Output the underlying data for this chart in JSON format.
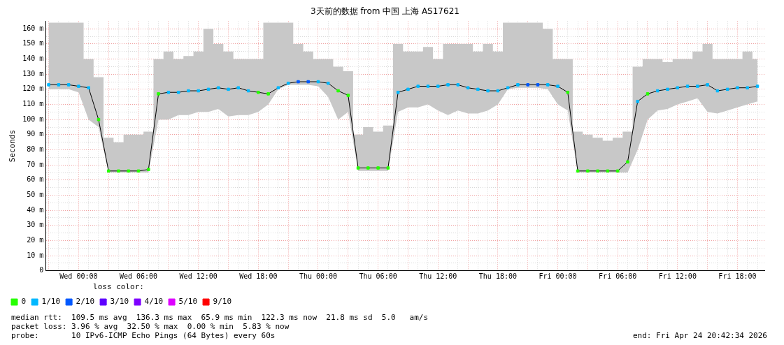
{
  "chart_data": {
    "type": "line",
    "title": "3天前的数据 from 中国 上海 AS17621",
    "ylabel": "Seconds",
    "legend_title": "loss color:",
    "legend": "bottom",
    "grid": true,
    "marker": "square",
    "annotations": [
      "median rtt:  109.5 ms avg  136.3 ms max  65.9 ms min  122.3 ms now  21.8 ms sd  5.0   am/s",
      "packet loss: 3.96 % avg  32.50 % max  0.00 % min  5.83 % now",
      "probe:       10 IPv6-ICMP Echo Pings (64 Bytes) every 60s",
      "end: Fri Apr 24 20:42:34 2026"
    ],
    "xlim": [
      "2026-04-21T20:42",
      "2026-04-24T20:42"
    ],
    "ylim": [
      0,
      165
    ],
    "yticks": [
      0,
      {
        "value": 5,
        "label": null
      },
      {
        "value": 10,
        "label": "10 m"
      },
      {
        "value": 15,
        "label": null
      },
      {
        "value": 20,
        "label": "20 m"
      },
      {
        "value": 25,
        "label": null
      },
      {
        "value": 30,
        "label": "30 m"
      },
      {
        "value": 35,
        "label": null
      },
      {
        "value": 40,
        "label": "40 m"
      },
      {
        "value": 45,
        "label": null
      },
      {
        "value": 50,
        "label": "50 m"
      },
      {
        "value": 55,
        "label": null
      },
      {
        "value": 60,
        "label": "60 m"
      },
      {
        "value": 65,
        "label": null
      },
      {
        "value": 70,
        "label": "70 m"
      },
      {
        "value": 75,
        "label": null
      },
      {
        "value": 80,
        "label": "80 m"
      },
      {
        "value": 85,
        "label": null
      },
      {
        "value": 90,
        "label": "90 m"
      },
      {
        "value": 95,
        "label": null
      },
      {
        "value": 100,
        "label": "100 m"
      },
      {
        "value": 105,
        "label": null
      },
      {
        "value": 110,
        "label": "110 m"
      },
      {
        "value": 115,
        "label": null
      },
      {
        "value": 120,
        "label": "120 m"
      },
      {
        "value": 125,
        "label": null
      },
      {
        "value": 130,
        "label": "130 m"
      },
      {
        "value": 135,
        "label": null
      },
      {
        "value": 140,
        "label": "140 m"
      },
      {
        "value": 145,
        "label": null
      },
      {
        "value": 150,
        "label": "150 m"
      },
      {
        "value": 155,
        "label": null
      },
      {
        "value": 160,
        "label": "160 m"
      }
    ],
    "xticks": [
      {
        "value": "2026-04-21T21:00",
        "label": null
      },
      {
        "value": "2026-04-21T22:00",
        "label": null
      },
      {
        "value": "2026-04-21T23:00",
        "label": null
      },
      {
        "value": "2026-04-22T00:00",
        "label": "Wed 00:00"
      },
      {
        "value": "2026-04-22T01:00",
        "label": null
      },
      {
        "value": "2026-04-22T02:00",
        "label": null
      },
      {
        "value": "2026-04-22T03:00",
        "label": null
      },
      {
        "value": "2026-04-22T04:00",
        "label": null
      },
      {
        "value": "2026-04-22T05:00",
        "label": null
      },
      {
        "value": "2026-04-22T06:00",
        "label": "Wed 06:00"
      },
      {
        "value": "2026-04-22T07:00",
        "label": null
      },
      {
        "value": "2026-04-22T08:00",
        "label": null
      },
      {
        "value": "2026-04-22T09:00",
        "label": null
      },
      {
        "value": "2026-04-22T10:00",
        "label": null
      },
      {
        "value": "2026-04-22T11:00",
        "label": null
      },
      {
        "value": "2026-04-22T12:00",
        "label": "Wed 12:00"
      },
      {
        "value": "2026-04-22T13:00",
        "label": null
      },
      {
        "value": "2026-04-22T14:00",
        "label": null
      },
      {
        "value": "2026-04-22T15:00",
        "label": null
      },
      {
        "value": "2026-04-22T16:00",
        "label": null
      },
      {
        "value": "2026-04-22T17:00",
        "label": null
      },
      {
        "value": "2026-04-22T18:00",
        "label": "Wed 18:00"
      },
      {
        "value": "2026-04-22T19:00",
        "label": null
      },
      {
        "value": "2026-04-22T20:00",
        "label": null
      },
      {
        "value": "2026-04-22T21:00",
        "label": null
      },
      {
        "value": "2026-04-22T22:00",
        "label": null
      },
      {
        "value": "2026-04-22T23:00",
        "label": null
      },
      {
        "value": "2026-04-23T00:00",
        "label": "Thu 00:00"
      },
      {
        "value": "2026-04-23T01:00",
        "label": null
      },
      {
        "value": "2026-04-23T02:00",
        "label": null
      },
      {
        "value": "2026-04-23T03:00",
        "label": null
      },
      {
        "value": "2026-04-23T04:00",
        "label": null
      },
      {
        "value": "2026-04-23T05:00",
        "label": null
      },
      {
        "value": "2026-04-23T06:00",
        "label": "Thu 06:00"
      },
      {
        "value": "2026-04-23T07:00",
        "label": null
      },
      {
        "value": "2026-04-23T08:00",
        "label": null
      },
      {
        "value": "2026-04-23T09:00",
        "label": null
      },
      {
        "value": "2026-04-23T10:00",
        "label": null
      },
      {
        "value": "2026-04-23T11:00",
        "label": null
      },
      {
        "value": "2026-04-23T12:00",
        "label": "Thu 12:00"
      },
      {
        "value": "2026-04-23T13:00",
        "label": null
      },
      {
        "value": "2026-04-23T14:00",
        "label": null
      },
      {
        "value": "2026-04-23T15:00",
        "label": null
      },
      {
        "value": "2026-04-23T16:00",
        "label": null
      },
      {
        "value": "2026-04-23T17:00",
        "label": null
      },
      {
        "value": "2026-04-23T18:00",
        "label": "Thu 18:00"
      },
      {
        "value": "2026-04-23T19:00",
        "label": null
      },
      {
        "value": "2026-04-23T20:00",
        "label": null
      },
      {
        "value": "2026-04-23T21:00",
        "label": null
      },
      {
        "value": "2026-04-23T22:00",
        "label": null
      },
      {
        "value": "2026-04-23T23:00",
        "label": null
      },
      {
        "value": "2026-04-24T00:00",
        "label": "Fri 00:00"
      },
      {
        "value": "2026-04-24T01:00",
        "label": null
      },
      {
        "value": "2026-04-24T02:00",
        "label": null
      },
      {
        "value": "2026-04-24T03:00",
        "label": null
      },
      {
        "value": "2026-04-24T04:00",
        "label": null
      },
      {
        "value": "2026-04-24T05:00",
        "label": null
      },
      {
        "value": "2026-04-24T06:00",
        "label": "Fri 06:00"
      },
      {
        "value": "2026-04-24T07:00",
        "label": null
      },
      {
        "value": "2026-04-24T08:00",
        "label": null
      },
      {
        "value": "2026-04-24T09:00",
        "label": null
      },
      {
        "value": "2026-04-24T10:00",
        "label": null
      },
      {
        "value": "2026-04-24T11:00",
        "label": null
      },
      {
        "value": "2026-04-24T12:00",
        "label": "Fri 12:00"
      },
      {
        "value": "2026-04-24T13:00",
        "label": null
      },
      {
        "value": "2026-04-24T14:00",
        "label": null
      },
      {
        "value": "2026-04-24T15:00",
        "label": null
      },
      {
        "value": "2026-04-24T16:00",
        "label": null
      },
      {
        "value": "2026-04-24T17:00",
        "label": null
      },
      {
        "value": "2026-04-24T18:00",
        "label": "Fri 18:00"
      },
      {
        "value": "2026-04-24T19:00",
        "label": null
      },
      {
        "value": "2026-04-24T20:00",
        "label": null
      }
    ],
    "x": [
      "2026-04-21T21:00",
      "2026-04-21T22:00",
      "2026-04-21T23:00",
      "2026-04-22T00:00",
      "2026-04-22T01:00",
      "2026-04-22T02:00",
      "2026-04-22T03:00",
      "2026-04-22T04:00",
      "2026-04-22T05:00",
      "2026-04-22T06:00",
      "2026-04-22T07:00",
      "2026-04-22T08:00",
      "2026-04-22T09:00",
      "2026-04-22T10:00",
      "2026-04-22T11:00",
      "2026-04-22T12:00",
      "2026-04-22T13:00",
      "2026-04-22T14:00",
      "2026-04-22T15:00",
      "2026-04-22T16:00",
      "2026-04-22T17:00",
      "2026-04-22T18:00",
      "2026-04-22T19:00",
      "2026-04-22T20:00",
      "2026-04-22T21:00",
      "2026-04-22T22:00",
      "2026-04-22T23:00",
      "2026-04-23T00:00",
      "2026-04-23T01:00",
      "2026-04-23T02:00",
      "2026-04-23T03:00",
      "2026-04-23T04:00",
      "2026-04-23T05:00",
      "2026-04-23T06:00",
      "2026-04-23T07:00",
      "2026-04-23T08:00",
      "2026-04-23T09:00",
      "2026-04-23T10:00",
      "2026-04-23T11:00",
      "2026-04-23T12:00",
      "2026-04-23T13:00",
      "2026-04-23T14:00",
      "2026-04-23T15:00",
      "2026-04-23T16:00",
      "2026-04-23T17:00",
      "2026-04-23T18:00",
      "2026-04-23T19:00",
      "2026-04-23T20:00",
      "2026-04-23T21:00",
      "2026-04-23T22:00",
      "2026-04-23T23:00",
      "2026-04-24T00:00",
      "2026-04-24T01:00",
      "2026-04-24T02:00",
      "2026-04-24T03:00",
      "2026-04-24T04:00",
      "2026-04-24T05:00",
      "2026-04-24T06:00",
      "2026-04-24T07:00",
      "2026-04-24T08:00",
      "2026-04-24T09:00",
      "2026-04-24T10:00",
      "2026-04-24T11:00",
      "2026-04-24T12:00",
      "2026-04-24T13:00",
      "2026-04-24T14:00",
      "2026-04-24T15:00",
      "2026-04-24T16:00",
      "2026-04-24T17:00",
      "2026-04-24T18:00",
      "2026-04-24T19:00",
      "2026-04-24T20:00"
    ],
    "series": [
      {
        "color": "#000000",
        "marker": "none",
        "values": [
          123,
          123,
          123,
          122,
          121,
          100,
          66,
          66,
          66,
          66,
          67,
          117,
          118,
          118,
          119,
          119,
          120,
          121,
          120,
          121,
          119,
          118,
          117,
          121,
          124,
          125,
          125,
          125,
          124,
          119,
          116,
          68,
          68,
          68,
          68,
          118,
          120,
          122,
          122,
          122,
          123,
          123,
          121,
          120,
          119,
          119,
          121,
          123,
          123,
          123,
          123,
          122,
          118,
          66,
          66,
          66,
          66,
          66,
          72,
          112,
          117,
          119,
          120,
          121,
          122,
          122,
          123,
          119,
          120,
          121,
          121,
          122
        ],
        "upper": [
          164,
          164,
          164,
          164,
          140,
          128,
          88,
          85,
          90,
          90,
          92,
          140,
          145,
          140,
          142,
          145,
          160,
          150,
          145,
          140,
          140,
          140,
          164,
          164,
          164,
          150,
          145,
          140,
          140,
          135,
          132,
          90,
          95,
          92,
          96,
          150,
          145,
          145,
          148,
          140,
          150,
          150,
          150,
          145,
          150,
          145,
          164,
          164,
          164,
          164,
          160,
          140,
          140,
          92,
          90,
          88,
          86,
          88,
          92,
          135,
          140,
          140,
          138,
          140,
          140,
          145,
          150,
          140,
          140,
          140,
          145,
          140
        ],
        "lower": [
          120,
          120,
          120,
          118,
          100,
          95,
          65,
          65,
          65,
          65,
          65,
          100,
          100,
          103,
          103,
          105,
          105,
          107,
          102,
          103,
          103,
          105,
          110,
          120,
          123,
          123,
          123,
          122,
          115,
          100,
          105,
          66,
          66,
          66,
          66,
          105,
          108,
          108,
          110,
          106,
          103,
          106,
          104,
          104,
          106,
          110,
          120,
          121,
          121,
          121,
          120,
          110,
          106,
          65,
          65,
          65,
          65,
          65,
          65,
          80,
          100,
          106,
          107,
          110,
          112,
          114,
          105,
          104,
          106,
          108,
          110,
          112
        ]
      },
      {
        "type": "scatter",
        "name": "0",
        "color": "#26ff00",
        "values": [
          null,
          null,
          null,
          null,
          null,
          100,
          66,
          66,
          66,
          66,
          67,
          117,
          null,
          null,
          null,
          null,
          null,
          null,
          null,
          null,
          null,
          118,
          117,
          null,
          null,
          null,
          null,
          null,
          null,
          119,
          116,
          68,
          68,
          68,
          68,
          null,
          null,
          null,
          null,
          null,
          null,
          null,
          null,
          null,
          null,
          null,
          null,
          null,
          null,
          null,
          null,
          null,
          118,
          66,
          66,
          66,
          66,
          66,
          72,
          null,
          117,
          null,
          null,
          null,
          null,
          null,
          null,
          null,
          null,
          null,
          null,
          null
        ]
      },
      {
        "type": "scatter",
        "name": "1/10",
        "color": "#00b8ff",
        "values": [
          123,
          123,
          123,
          122,
          121,
          null,
          null,
          null,
          null,
          null,
          null,
          null,
          118,
          118,
          119,
          119,
          120,
          121,
          120,
          121,
          119,
          null,
          null,
          121,
          124,
          null,
          null,
          125,
          124,
          null,
          null,
          null,
          null,
          null,
          null,
          118,
          120,
          122,
          122,
          122,
          123,
          123,
          121,
          120,
          119,
          119,
          121,
          123,
          null,
          null,
          123,
          122,
          null,
          null,
          null,
          null,
          null,
          null,
          null,
          112,
          null,
          119,
          120,
          121,
          122,
          122,
          123,
          119,
          120,
          121,
          121,
          122
        ]
      },
      {
        "type": "scatter",
        "name": "2/10",
        "color": "#0059ff",
        "values": [
          null,
          null,
          null,
          null,
          null,
          null,
          null,
          null,
          null,
          null,
          null,
          null,
          null,
          null,
          null,
          null,
          null,
          null,
          null,
          null,
          null,
          null,
          null,
          null,
          null,
          125,
          125,
          null,
          null,
          null,
          null,
          null,
          null,
          null,
          null,
          null,
          null,
          null,
          null,
          null,
          null,
          null,
          null,
          null,
          null,
          null,
          null,
          null,
          123,
          123,
          null,
          null,
          null,
          null,
          null,
          null,
          null,
          null,
          null,
          null,
          null,
          null,
          null,
          null,
          null,
          null,
          null,
          null,
          null,
          null,
          null,
          null
        ]
      },
      {
        "type": "scatter",
        "name": "3/10",
        "color": "#5e00ff",
        "values": [
          null,
          null,
          null,
          null,
          null,
          null,
          null,
          null,
          null,
          null,
          null,
          null,
          null,
          null,
          null,
          null,
          null,
          null,
          null,
          null,
          null,
          null,
          null,
          null,
          null,
          null,
          null,
          null,
          null,
          null,
          null,
          null,
          null,
          null,
          null,
          null,
          null,
          null,
          null,
          null,
          null,
          null,
          null,
          null,
          null,
          null,
          null,
          null,
          null,
          null,
          null,
          null,
          null,
          null,
          null,
          null,
          null,
          null,
          null,
          null,
          null,
          null,
          null,
          null,
          null,
          null,
          null,
          null,
          null,
          null,
          null,
          null
        ]
      },
      {
        "type": "scatter",
        "name": "4/10",
        "color": "#7e00ff",
        "values": [
          null,
          null,
          null,
          null,
          null,
          null,
          null,
          null,
          null,
          null,
          null,
          null,
          null,
          null,
          null,
          null,
          null,
          null,
          null,
          null,
          null,
          null,
          null,
          null,
          null,
          null,
          null,
          null,
          null,
          null,
          null,
          null,
          null,
          null,
          null,
          null,
          null,
          null,
          null,
          null,
          null,
          null,
          null,
          null,
          null,
          null,
          null,
          null,
          null,
          null,
          null,
          null,
          null,
          null,
          null,
          null,
          null,
          null,
          null,
          null,
          null,
          null,
          null,
          null,
          null,
          null,
          null,
          null,
          null,
          null,
          null,
          null
        ]
      },
      {
        "type": "scatter",
        "name": "5/10",
        "color": "#dd00ff",
        "values": [
          null,
          null,
          null,
          null,
          null,
          null,
          null,
          null,
          null,
          null,
          null,
          null,
          null,
          null,
          null,
          null,
          null,
          null,
          null,
          null,
          null,
          null,
          null,
          null,
          null,
          null,
          null,
          null,
          null,
          null,
          null,
          null,
          null,
          null,
          null,
          null,
          null,
          null,
          null,
          null,
          null,
          null,
          null,
          null,
          null,
          null,
          null,
          null,
          null,
          null,
          null,
          null,
          null,
          null,
          null,
          null,
          null,
          null,
          null,
          null,
          null,
          null,
          null,
          null,
          null,
          null,
          null,
          null,
          null,
          null,
          null,
          null
        ]
      },
      {
        "type": "scatter",
        "name": "9/10",
        "color": "#ff0000",
        "values": [
          null,
          null,
          null,
          null,
          null,
          null,
          null,
          null,
          null,
          null,
          null,
          null,
          null,
          null,
          null,
          null,
          null,
          null,
          null,
          null,
          null,
          null,
          null,
          null,
          null,
          null,
          null,
          null,
          null,
          null,
          null,
          null,
          null,
          null,
          null,
          null,
          null,
          null,
          null,
          null,
          null,
          null,
          null,
          null,
          null,
          null,
          null,
          null,
          null,
          null,
          null,
          null,
          null,
          null,
          null,
          null,
          null,
          null,
          null,
          null,
          null,
          null,
          null,
          null,
          null,
          null,
          null,
          null,
          null,
          null,
          null,
          null
        ]
      }
    ]
  }
}
